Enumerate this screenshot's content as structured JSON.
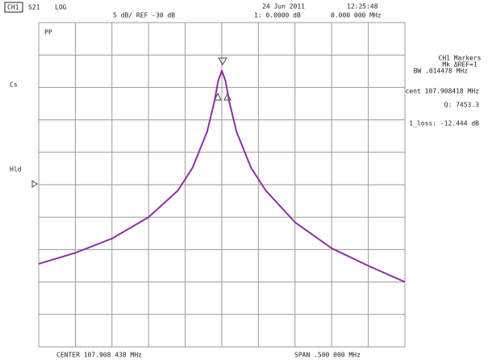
{
  "chart_data": {
    "type": "line",
    "header": [
      "CH1",
      "S21",
      "LOG",
      "5 dB/ REF -30 dB",
      "24 Jun 2011",
      "12:25:48",
      "1: 0.0000 dB",
      "0.000 000 MHz"
    ],
    "side_labels": [
      "PP",
      "Cs",
      "Hld"
    ],
    "marker_info": [
      "CH1 Markers",
      "Mk ΔREF=1",
      "BW .014478 MHz",
      "cent 107.908418 MHz",
      "Q: 7453.3",
      "1_loss: -12.444 dB"
    ],
    "footer": [
      "CENTER 107.908 438 MHz",
      "SPAN .500 000 MHz"
    ],
    "x": [
      107.658438,
      107.708438,
      107.758438,
      107.808438,
      107.848438,
      107.868438,
      107.888438,
      107.898438,
      107.903438,
      107.908438,
      107.913438,
      107.918438,
      107.928438,
      107.948438,
      107.968438,
      108.008438,
      108.058438,
      108.108438,
      108.158438
    ],
    "values": [
      -42.2,
      -40.5,
      -38.3,
      -35,
      -30.9,
      -27.4,
      -21.8,
      -17.1,
      -14,
      -12.4,
      -14,
      -17.1,
      -21.8,
      -27.4,
      -30.9,
      -35.8,
      -39.8,
      -42.5,
      -45
    ],
    "color": "#8b2fa8",
    "xlim": [
      107.658438,
      108.158438
    ],
    "ylim": [
      -55,
      -5
    ]
  }
}
